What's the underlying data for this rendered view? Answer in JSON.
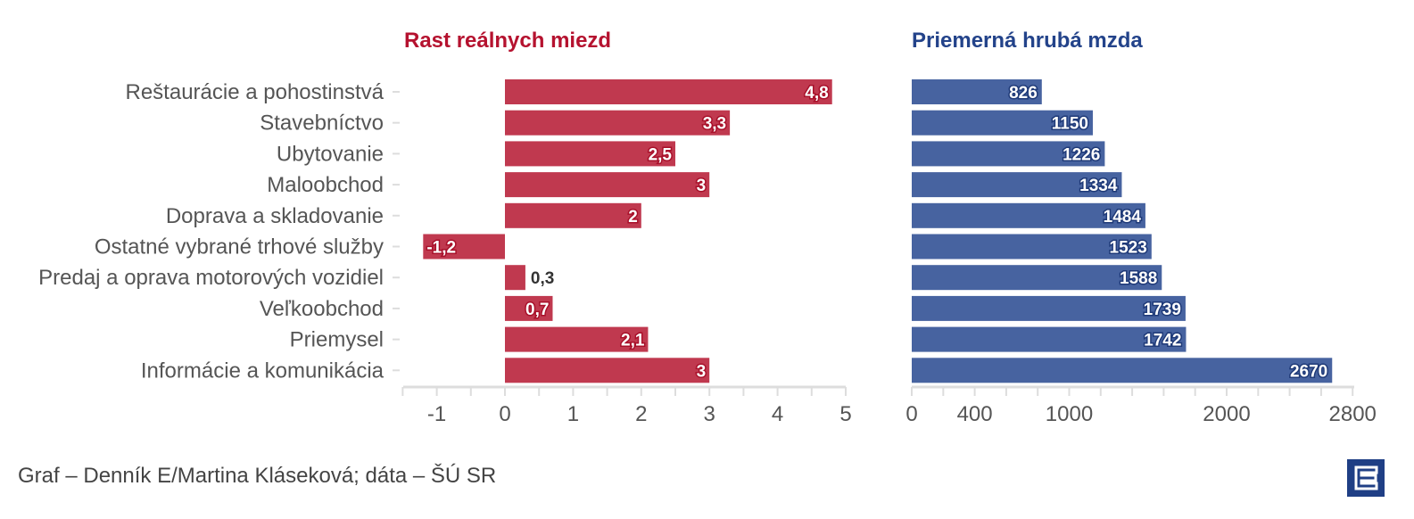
{
  "chart_data": [
    {
      "type": "bar",
      "orientation": "horizontal",
      "title": "Rast reálnych miezd",
      "categories": [
        "Reštaurácie a pohostinstvá",
        "Stavebníctvo",
        "Ubytovanie",
        "Maloobchod",
        "Doprava a skladovanie",
        "Ostatné vybrané trhové služby",
        "Predaj a oprava motorových vozidiel",
        "Veľkoobchod",
        "Priemysel",
        "Informácie a komunikácia"
      ],
      "values": [
        4.8,
        3.3,
        2.5,
        3,
        2,
        -1.2,
        0.3,
        0.7,
        2.1,
        3
      ],
      "labels": [
        "4,8",
        "3,3",
        "2,5",
        "3",
        "2",
        "-1,2",
        "0,3",
        "0,7",
        "2,1",
        "3"
      ],
      "xlim": [
        -1.5,
        5
      ],
      "ticks": [
        -1,
        0,
        1,
        2,
        3,
        4,
        5
      ],
      "tick_labels": [
        "-1",
        "0",
        "1",
        "2",
        "3",
        "4",
        "5"
      ],
      "color": "#c0394f"
    },
    {
      "type": "bar",
      "orientation": "horizontal",
      "title": "Priemerná hrubá mzda",
      "values": [
        826,
        1150,
        1226,
        1334,
        1484,
        1523,
        1588,
        1739,
        1742,
        2670
      ],
      "labels": [
        "826",
        "1150",
        "1226",
        "1334",
        "1484",
        "1523",
        "1588",
        "1739",
        "1742",
        "2670"
      ],
      "xlim": [
        0,
        2800
      ],
      "ticks": [
        0,
        400,
        1000,
        2000,
        2800
      ],
      "tick_labels": [
        "0",
        "400",
        "1000",
        "2000",
        "2800"
      ],
      "color": "#4763a0"
    }
  ],
  "colors": {
    "red_title": "#b5122f",
    "blue_title": "#23438a"
  },
  "credit": "Graf – Denník E/Martina Kláseková; dáta – ŠÚ SR",
  "logo_text": "E"
}
